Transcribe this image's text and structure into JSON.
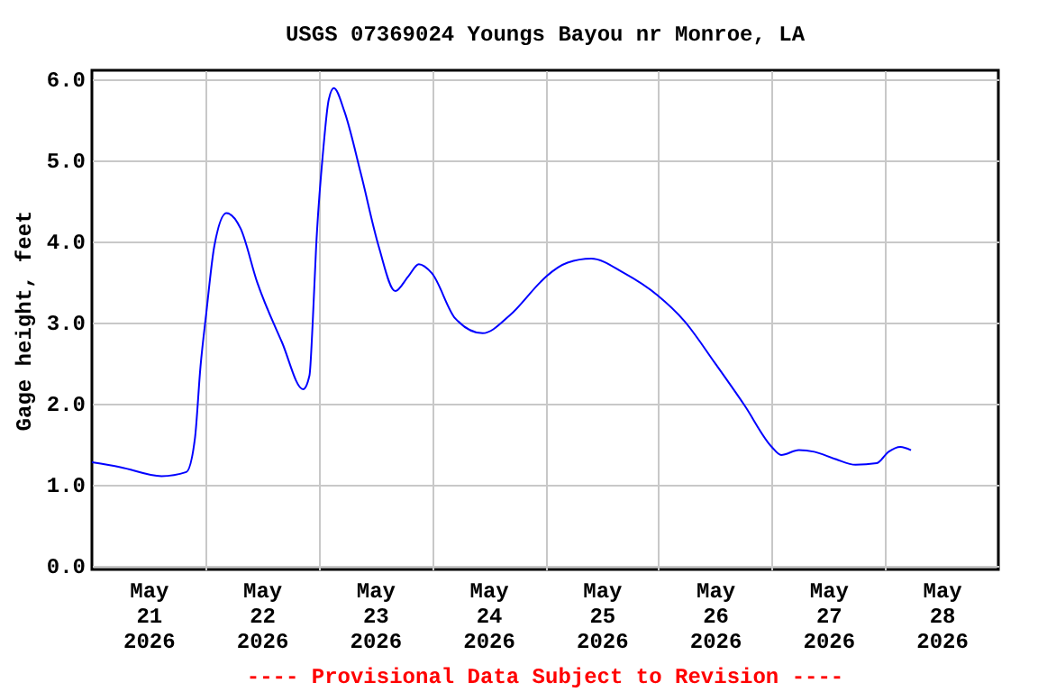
{
  "chart_data": {
    "type": "line",
    "title": "USGS 07369024 Youngs Bayou nr Monroe, LA",
    "ylabel": "Gage height, feet",
    "annotations": [
      "---- Provisional Data Subject to Revision ----"
    ],
    "x": [
      "2026-05-21T00:00",
      "2026-05-21T06:00",
      "2026-05-21T14:45",
      "2026-05-21T20:00",
      "2026-05-21T21:50",
      "2026-05-21T23:00",
      "2026-05-22T00:15",
      "2026-05-22T01:55",
      "2026-05-22T04:30",
      "2026-05-22T07:30",
      "2026-05-22T11:00",
      "2026-05-22T16:15",
      "2026-05-22T20:45",
      "2026-05-22T22:05",
      "2026-05-22T22:45",
      "2026-05-22T23:30",
      "2026-05-23T01:00",
      "2026-05-23T02:10",
      "2026-05-23T03:15",
      "2026-05-23T05:30",
      "2026-05-23T09:00",
      "2026-05-23T12:45",
      "2026-05-23T16:15",
      "2026-05-23T19:00",
      "2026-05-23T21:15",
      "2026-05-24T00:00",
      "2026-05-24T05:00",
      "2026-05-24T10:45",
      "2026-05-24T16:30",
      "2026-05-24T23:00",
      "2026-05-25T00:15",
      "2026-05-25T04:45",
      "2026-05-25T09:45",
      "2026-05-25T16:45",
      "2026-05-25T23:45",
      "2026-05-26T05:30",
      "2026-05-26T12:00",
      "2026-05-26T18:15",
      "2026-05-27T00:00",
      "2026-05-27T02:00",
      "2026-05-27T05:45",
      "2026-05-27T09:00",
      "2026-05-27T13:30",
      "2026-05-27T17:45",
      "2026-05-27T22:15",
      "2026-05-28T00:45",
      "2026-05-28T03:15",
      "2026-05-28T05:30"
    ],
    "series": [
      {
        "color": "#0000ff",
        "values": [
          1.27,
          1.21,
          1.1,
          1.15,
          1.57,
          2.45,
          3.12,
          3.93,
          4.34,
          4.15,
          3.49,
          2.75,
          2.17,
          2.34,
          2.97,
          3.93,
          5.12,
          5.74,
          5.88,
          5.59,
          4.82,
          3.93,
          3.38,
          3.56,
          3.71,
          3.6,
          3.04,
          2.86,
          3.08,
          3.49,
          3.56,
          3.73,
          3.78,
          3.6,
          3.33,
          3.01,
          2.49,
          1.97,
          1.46,
          1.36,
          1.42,
          1.4,
          1.31,
          1.24,
          1.26,
          1.4,
          1.46,
          1.42
        ]
      }
    ],
    "xlim": [
      "2026-05-21T00:00",
      "2026-05-29T00:00"
    ],
    "xticks": [
      {
        "value": "2026-05-21T12:00",
        "label": "May 21 2026"
      },
      {
        "value": "2026-05-22T12:00",
        "label": "May 22 2026"
      },
      {
        "value": "2026-05-23T12:00",
        "label": "May 23 2026"
      },
      {
        "value": "2026-05-24T12:00",
        "label": "May 24 2026"
      },
      {
        "value": "2026-05-25T12:00",
        "label": "May 25 2026"
      },
      {
        "value": "2026-05-26T12:00",
        "label": "May 26 2026"
      },
      {
        "value": "2026-05-27T12:00",
        "label": "May 27 2026"
      },
      {
        "value": "2026-05-28T12:00",
        "label": "May 28 2026"
      },
      {
        "value": "2026-05-22T00:00",
        "label": null
      },
      {
        "value": "2026-05-23T00:00",
        "label": null
      },
      {
        "value": "2026-05-24T00:00",
        "label": null
      },
      {
        "value": "2026-05-25T00:00",
        "label": null
      },
      {
        "value": "2026-05-26T00:00",
        "label": null
      },
      {
        "value": "2026-05-27T00:00",
        "label": null
      },
      {
        "value": "2026-05-28T00:00",
        "label": null
      }
    ],
    "ylim": [
      -0.05,
      6.1
    ],
    "yticks": [
      {
        "value": 0,
        "label": "0.0"
      },
      {
        "value": 1,
        "label": "1.0"
      },
      {
        "value": 2,
        "label": "2.0"
      },
      {
        "value": 3,
        "label": "3.0"
      },
      {
        "value": 4,
        "label": "4.0"
      },
      {
        "value": 5,
        "label": "5.0"
      },
      {
        "value": 6,
        "label": "6.0"
      }
    ],
    "grid": true,
    "marker": "none",
    "line_style": "solid"
  }
}
